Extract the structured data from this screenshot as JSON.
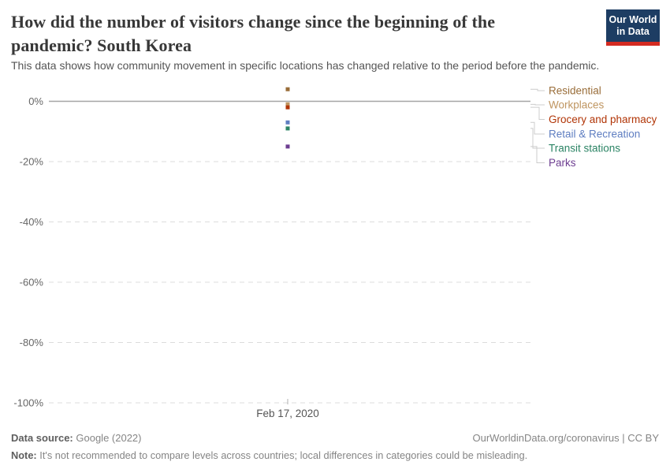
{
  "header": {
    "title": "How did the number of visitors change since the beginning of the pandemic? South Korea",
    "subtitle": "This data shows how community movement in specific locations has changed relative to the period before the pandemic.",
    "logo_line1": "Our World",
    "logo_line2": "in Data",
    "logo_bg": "#1d3d63",
    "logo_stripe": "#d42b21"
  },
  "chart_data": {
    "type": "scatter",
    "entity": "South Korea",
    "x": [
      "Feb 17, 2020"
    ],
    "x_label": "Feb 17, 2020",
    "unit": "%",
    "series": [
      {
        "name": "Residential",
        "values": [
          4
        ],
        "color": "#996d39"
      },
      {
        "name": "Workplaces",
        "values": [
          -1
        ],
        "color": "#bf9560"
      },
      {
        "name": "Grocery and pharmacy",
        "values": [
          -2
        ],
        "color": "#b13507"
      },
      {
        "name": "Retail & Recreation",
        "values": [
          -7
        ],
        "color": "#5f7ec1"
      },
      {
        "name": "Transit stations",
        "values": [
          -9
        ],
        "color": "#2c8465"
      },
      {
        "name": "Parks",
        "values": [
          -15
        ],
        "color": "#6d3e91"
      }
    ],
    "y_ticks": [
      "0%",
      "-20%",
      "-40%",
      "-60%",
      "-80%",
      "-100%"
    ],
    "y_tick_values": [
      0,
      -20,
      -40,
      -60,
      -80,
      -100
    ],
    "ylim": [
      -100,
      5
    ],
    "grid": "dashed horizontal, solid zero line",
    "legend_position": "right"
  },
  "footer": {
    "source_label": "Data source:",
    "source_value": "Google (2022)",
    "attribution": "OurWorldinData.org/coronavirus | CC BY",
    "note_label": "Note:",
    "note_value": "It's not recommended to compare levels across countries; local differences in categories could be misleading."
  }
}
